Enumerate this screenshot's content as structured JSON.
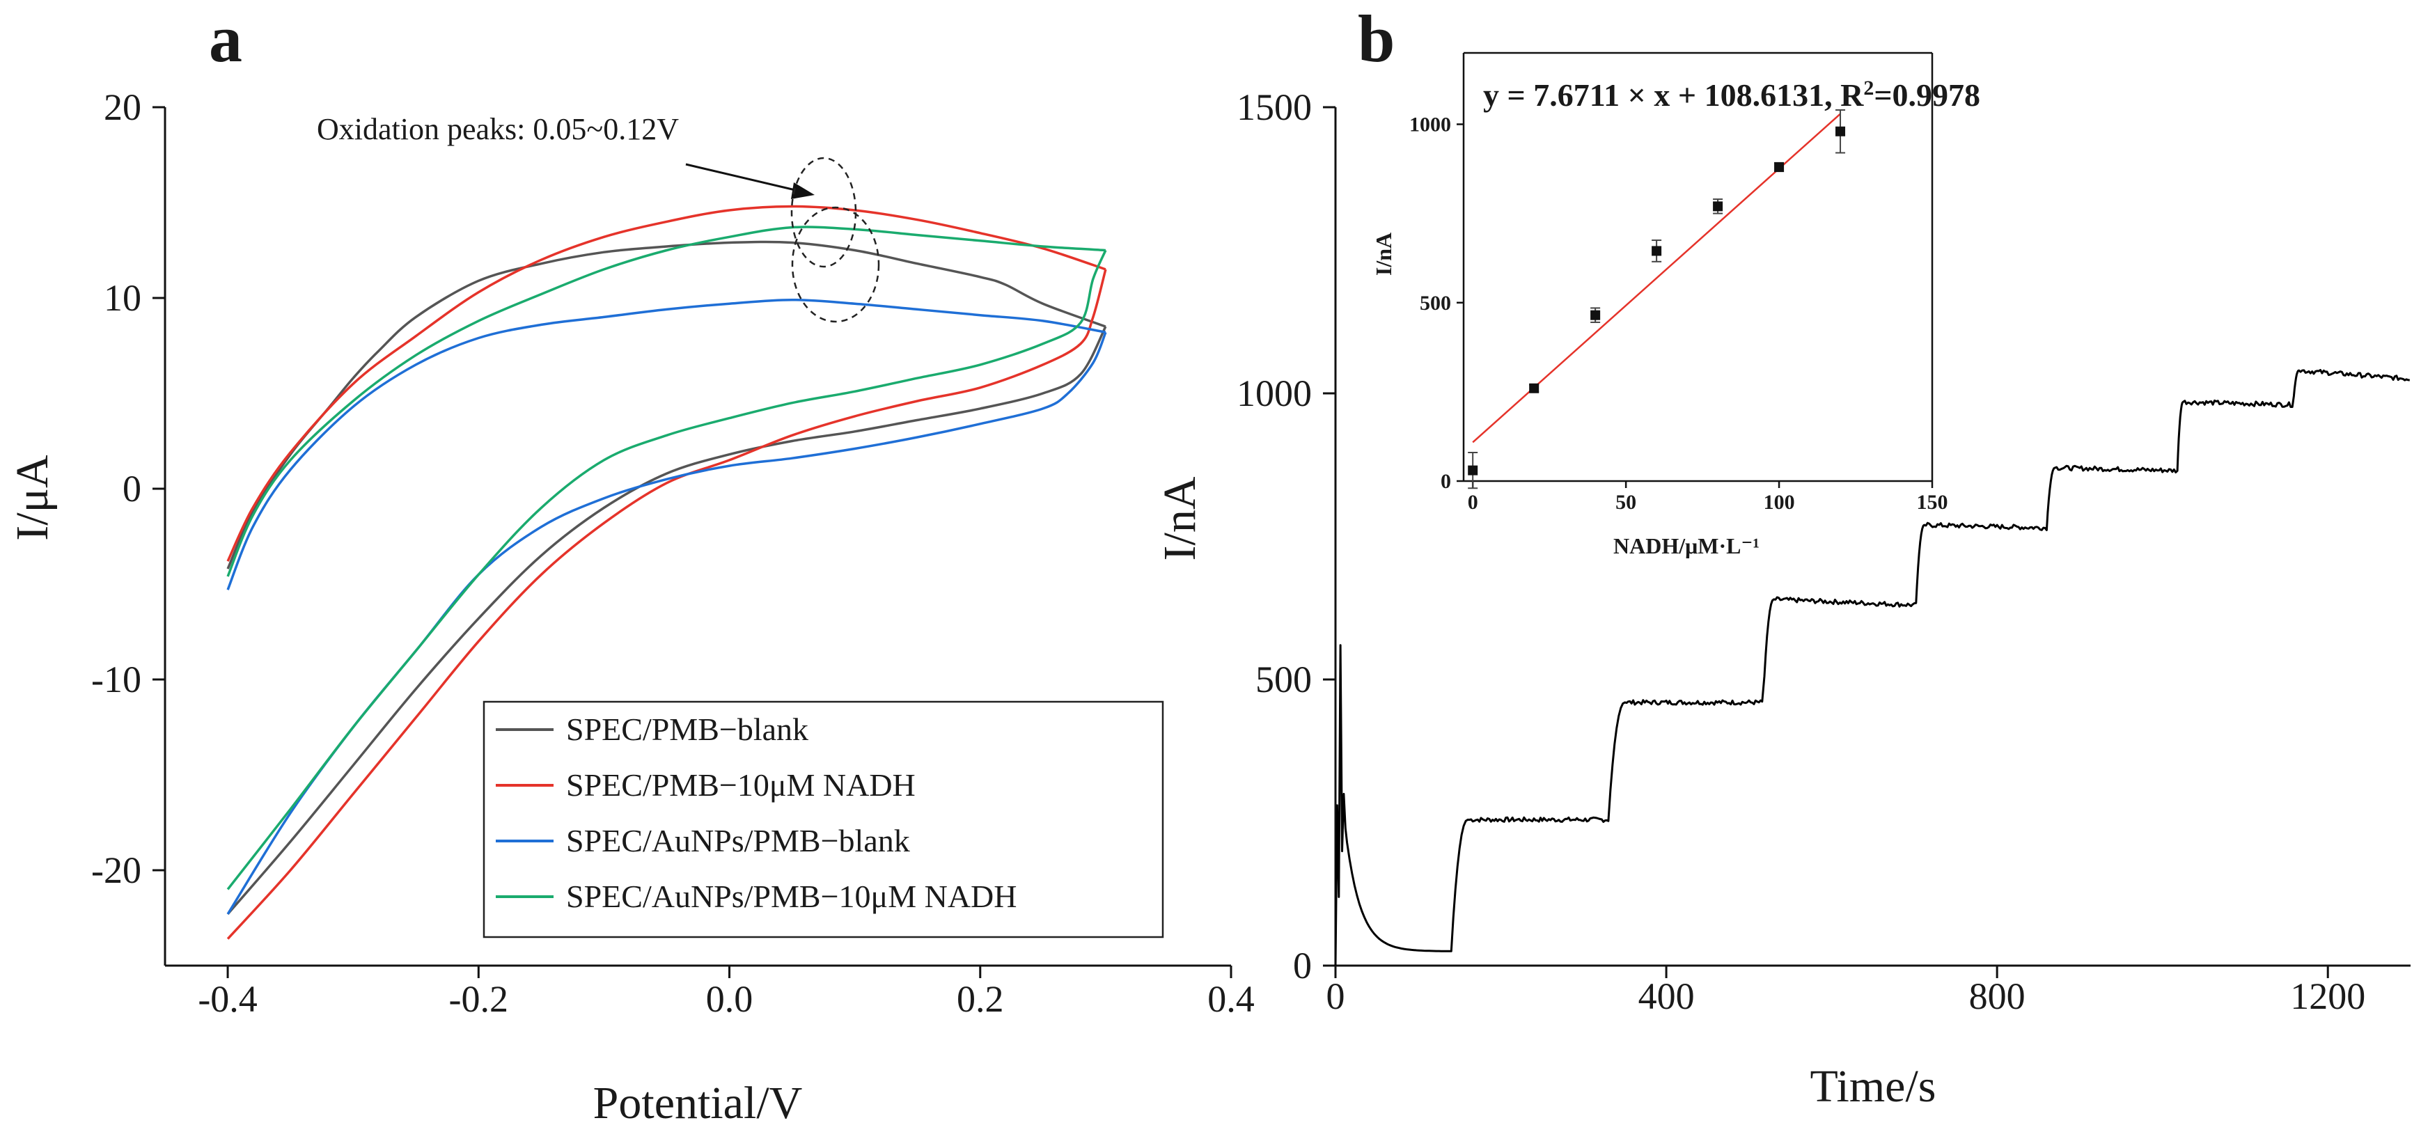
{
  "chart_data": [
    {
      "type": "line",
      "panel_label": "a",
      "xlabel": "Potential/V",
      "ylabel": "I/μA",
      "xlim": [
        -0.45,
        0.4
      ],
      "ylim": [
        -25,
        20
      ],
      "xticks": [
        -0.4,
        -0.2,
        0.0,
        0.2,
        0.4
      ],
      "xtick_labels": [
        "-0.4",
        "-0.2",
        "0.0",
        "0.2",
        "0.4"
      ],
      "yticks": [
        -20,
        -10,
        0,
        10,
        20
      ],
      "ytick_labels": [
        "-20",
        "-10",
        "0",
        "10",
        "20"
      ],
      "legend_position": "bottom-right",
      "annotation": "Oxidation peaks: 0.05~0.12V",
      "series": [
        {
          "name": "SPEC/PMB−blank",
          "color": "#555555",
          "forward": [
            [
              -0.4,
              -4.2
            ],
            [
              -0.38,
              -1.2
            ],
            [
              -0.35,
              1.8
            ],
            [
              -0.32,
              4.2
            ],
            [
              -0.3,
              5.8
            ],
            [
              -0.28,
              7.2
            ],
            [
              -0.25,
              9.0
            ],
            [
              -0.2,
              10.9
            ],
            [
              -0.15,
              11.8
            ],
            [
              -0.1,
              12.4
            ],
            [
              -0.05,
              12.7
            ],
            [
              0.0,
              12.9
            ],
            [
              0.05,
              12.9
            ],
            [
              0.1,
              12.5
            ],
            [
              0.15,
              11.8
            ],
            [
              0.2,
              11.1
            ],
            [
              0.22,
              10.7
            ],
            [
              0.25,
              9.7
            ],
            [
              0.3,
              8.5
            ]
          ],
          "reverse": [
            [
              0.3,
              8.5
            ],
            [
              0.28,
              6.0
            ],
            [
              0.25,
              5.0
            ],
            [
              0.2,
              4.2
            ],
            [
              0.15,
              3.6
            ],
            [
              0.1,
              3.0
            ],
            [
              0.05,
              2.5
            ],
            [
              0.0,
              1.8
            ],
            [
              -0.05,
              0.8
            ],
            [
              -0.1,
              -1.0
            ],
            [
              -0.15,
              -3.5
            ],
            [
              -0.2,
              -6.8
            ],
            [
              -0.25,
              -10.5
            ],
            [
              -0.3,
              -14.5
            ],
            [
              -0.35,
              -18.5
            ],
            [
              -0.4,
              -22.3
            ]
          ]
        },
        {
          "name": "SPEC/PMB−10μM NADH",
          "color": "#e5332a",
          "forward": [
            [
              -0.4,
              -3.8
            ],
            [
              -0.38,
              -1.0
            ],
            [
              -0.35,
              1.9
            ],
            [
              -0.3,
              5.5
            ],
            [
              -0.25,
              8.0
            ],
            [
              -0.2,
              10.3
            ],
            [
              -0.15,
              12.0
            ],
            [
              -0.1,
              13.2
            ],
            [
              -0.05,
              14.0
            ],
            [
              0.0,
              14.6
            ],
            [
              0.05,
              14.8
            ],
            [
              0.1,
              14.6
            ],
            [
              0.15,
              14.1
            ],
            [
              0.2,
              13.4
            ],
            [
              0.25,
              12.6
            ],
            [
              0.3,
              11.5
            ]
          ],
          "reverse": [
            [
              0.3,
              11.5
            ],
            [
              0.29,
              9.0
            ],
            [
              0.28,
              7.6
            ],
            [
              0.25,
              6.5
            ],
            [
              0.2,
              5.3
            ],
            [
              0.15,
              4.6
            ],
            [
              0.1,
              3.8
            ],
            [
              0.05,
              2.8
            ],
            [
              0.0,
              1.5
            ],
            [
              -0.05,
              0.3
            ],
            [
              -0.1,
              -1.8
            ],
            [
              -0.15,
              -4.5
            ],
            [
              -0.2,
              -8.0
            ],
            [
              -0.25,
              -12.0
            ],
            [
              -0.3,
              -16.0
            ],
            [
              -0.35,
              -20.0
            ],
            [
              -0.4,
              -23.6
            ]
          ]
        },
        {
          "name": "SPEC/AuNPs/PMB−blank",
          "color": "#1f6fd6",
          "forward": [
            [
              -0.4,
              -5.3
            ],
            [
              -0.38,
              -2.0
            ],
            [
              -0.35,
              1.0
            ],
            [
              -0.3,
              4.3
            ],
            [
              -0.25,
              6.5
            ],
            [
              -0.2,
              7.9
            ],
            [
              -0.15,
              8.6
            ],
            [
              -0.1,
              9.0
            ],
            [
              -0.05,
              9.4
            ],
            [
              0.0,
              9.7
            ],
            [
              0.05,
              9.9
            ],
            [
              0.1,
              9.7
            ],
            [
              0.15,
              9.4
            ],
            [
              0.2,
              9.1
            ],
            [
              0.25,
              8.8
            ],
            [
              0.3,
              8.2
            ]
          ],
          "reverse": [
            [
              0.3,
              8.2
            ],
            [
              0.29,
              6.6
            ],
            [
              0.27,
              5.0
            ],
            [
              0.25,
              4.2
            ],
            [
              0.2,
              3.4
            ],
            [
              0.15,
              2.7
            ],
            [
              0.1,
              2.1
            ],
            [
              0.05,
              1.6
            ],
            [
              0.0,
              1.2
            ],
            [
              -0.05,
              0.5
            ],
            [
              -0.1,
              -0.5
            ],
            [
              -0.15,
              -2.0
            ],
            [
              -0.2,
              -4.5
            ],
            [
              -0.25,
              -8.5
            ],
            [
              -0.3,
              -12.5
            ],
            [
              -0.35,
              -17.0
            ],
            [
              -0.4,
              -22.3
            ]
          ]
        },
        {
          "name": "SPEC/AuNPs/PMB−10μM NADH",
          "color": "#1aab6e",
          "forward": [
            [
              -0.4,
              -4.6
            ],
            [
              -0.38,
              -1.4
            ],
            [
              -0.35,
              1.5
            ],
            [
              -0.3,
              4.6
            ],
            [
              -0.25,
              7.0
            ],
            [
              -0.2,
              8.8
            ],
            [
              -0.15,
              10.2
            ],
            [
              -0.1,
              11.5
            ],
            [
              -0.05,
              12.5
            ],
            [
              0.0,
              13.2
            ],
            [
              0.05,
              13.7
            ],
            [
              0.1,
              13.6
            ],
            [
              0.15,
              13.3
            ],
            [
              0.2,
              13.0
            ],
            [
              0.25,
              12.7
            ],
            [
              0.3,
              12.5
            ]
          ],
          "reverse": [
            [
              0.3,
              12.5
            ],
            [
              0.29,
              11.0
            ],
            [
              0.28,
              8.7
            ],
            [
              0.25,
              7.6
            ],
            [
              0.2,
              6.5
            ],
            [
              0.15,
              5.8
            ],
            [
              0.1,
              5.1
            ],
            [
              0.05,
              4.5
            ],
            [
              0.0,
              3.7
            ],
            [
              -0.05,
              2.8
            ],
            [
              -0.1,
              1.5
            ],
            [
              -0.15,
              -1.0
            ],
            [
              -0.2,
              -4.5
            ],
            [
              -0.25,
              -8.5
            ],
            [
              -0.3,
              -12.5
            ],
            [
              -0.35,
              -16.8
            ],
            [
              -0.4,
              -21.0
            ]
          ]
        }
      ]
    },
    {
      "type": "line",
      "panel_label": "b",
      "xlabel": "Time/s",
      "ylabel": "I/nA",
      "xlim": [
        0,
        1300
      ],
      "ylim": [
        0,
        1500
      ],
      "xticks": [
        0,
        400,
        800,
        1200
      ],
      "xtick_labels": [
        "0",
        "400",
        "800",
        "1200"
      ],
      "yticks": [
        0,
        500,
        1000,
        1500
      ],
      "ytick_labels": [
        "0",
        "500",
        "1000",
        "1500"
      ],
      "series": [
        {
          "name": "",
          "color": "#000000",
          "steps": [
            {
              "t": 140,
              "level": 25
            },
            {
              "t": 160,
              "level": 255
            },
            {
              "t": 330,
              "level": 255
            },
            {
              "t": 350,
              "level": 460
            },
            {
              "t": 517,
              "level": 460
            },
            {
              "t": 530,
              "level": 640
            },
            {
              "t": 702,
              "level": 630
            },
            {
              "t": 712,
              "level": 770
            },
            {
              "t": 860,
              "level": 765
            },
            {
              "t": 870,
              "level": 870
            },
            {
              "t": 1018,
              "level": 865
            },
            {
              "t": 1025,
              "level": 985
            },
            {
              "t": 1158,
              "level": 980
            },
            {
              "t": 1165,
              "level": 1040
            },
            {
              "t": 1300,
              "level": 1025
            }
          ]
        }
      ],
      "inset": {
        "type": "scatter",
        "xlabel": "NADH/μM·L⁻¹",
        "ylabel": "I/nA",
        "xlim": [
          -3,
          150
        ],
        "ylim": [
          0,
          1200
        ],
        "xticks": [
          0,
          50,
          100,
          150
        ],
        "xtick_labels": [
          "0",
          "50",
          "100",
          "150"
        ],
        "yticks": [
          0,
          500,
          1000
        ],
        "ytick_labels": [
          "0",
          "500",
          "1000"
        ],
        "equation": "y = 7.6711 × x + 108.6131, R",
        "equation_sup": "2",
        "equation_tail": "=0.9978",
        "fit": {
          "slope": 7.6711,
          "intercept": 108.6131,
          "x_range": [
            0,
            120
          ],
          "color": "#e5332a"
        },
        "points": [
          {
            "x": 0,
            "y": 30,
            "err": 50
          },
          {
            "x": 20,
            "y": 260,
            "err": 10
          },
          {
            "x": 40,
            "y": 465,
            "err": 20
          },
          {
            "x": 60,
            "y": 645,
            "err": 30
          },
          {
            "x": 80,
            "y": 770,
            "err": 20
          },
          {
            "x": 100,
            "y": 880,
            "err": 12
          },
          {
            "x": 120,
            "y": 980,
            "err": 60
          }
        ]
      }
    }
  ]
}
